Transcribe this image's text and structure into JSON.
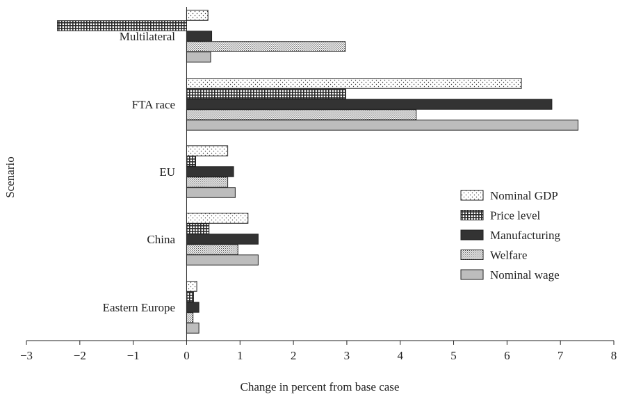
{
  "chart_data": {
    "type": "bar",
    "orientation": "horizontal",
    "categories": [
      "Multilateral",
      "FTA race",
      "EU",
      "China",
      "Eastern Europe"
    ],
    "series": [
      {
        "name": "Nominal GDP",
        "pattern": "dots",
        "values": [
          0.4,
          6.27,
          0.77,
          1.15,
          0.19
        ]
      },
      {
        "name": "Price level",
        "pattern": "grid",
        "values": [
          -2.42,
          2.98,
          0.17,
          0.42,
          0.13
        ]
      },
      {
        "name": "Manufacturing",
        "pattern": "solid",
        "values": [
          0.47,
          6.84,
          0.88,
          1.34,
          0.23
        ]
      },
      {
        "name": "Welfare",
        "pattern": "dense",
        "values": [
          2.97,
          4.3,
          0.77,
          0.96,
          0.12
        ]
      },
      {
        "name": "Nominal wage",
        "pattern": "gray",
        "values": [
          0.45,
          7.33,
          0.91,
          1.34,
          0.23
        ]
      }
    ],
    "xlim": [
      -3,
      8
    ],
    "xticks": [
      -3,
      -2,
      -1,
      0,
      1,
      2,
      3,
      4,
      5,
      6,
      7,
      8
    ],
    "xtick_labels": [
      "−3",
      "−2",
      "−1",
      "0",
      "1",
      "2",
      "3",
      "4",
      "5",
      "6",
      "7",
      "8"
    ],
    "xlabel": "Change in percent from base case",
    "ylabel": "Scenario",
    "title": "",
    "legend": "right",
    "grid": false,
    "colors": {
      "solid": "#333333",
      "gray": "#bdbdbd",
      "stroke": "#222222"
    }
  }
}
